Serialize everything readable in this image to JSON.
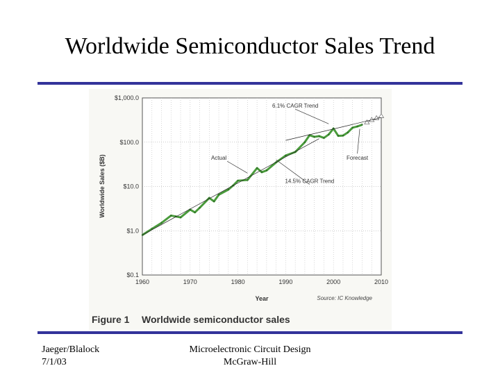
{
  "slide": {
    "title": "Worldwide Semiconductor Sales Trend",
    "footer_left": [
      "Jaeger/Blalock",
      "7/1/03"
    ],
    "footer_center": [
      "Microelectronic Circuit Design",
      "McGraw-Hill"
    ],
    "rule_color": "#33339a"
  },
  "chart_data": {
    "type": "line",
    "caption_number": "Figure 1",
    "caption_text": "Worldwide semiconductor sales",
    "xlabel": "Year",
    "ylabel": "Worldwide Sales ($B)",
    "yscale": "log",
    "xlim": [
      1960,
      2010
    ],
    "ylim": [
      0.1,
      1000
    ],
    "x_ticks": [
      1960,
      1970,
      1980,
      1990,
      2000,
      2010
    ],
    "y_ticks": [
      {
        "value": 1000,
        "label": "$1,000.0"
      },
      {
        "value": 100,
        "label": "$100.0"
      },
      {
        "value": 10,
        "label": "$10.0"
      },
      {
        "value": 1,
        "label": "$1.0"
      },
      {
        "value": 0.1,
        "label": "$0.1"
      }
    ],
    "grid": true,
    "source": "Source: IC Knowledge",
    "series": [
      {
        "name": "Actual",
        "color": "#4a9b3c",
        "x": [
          1960,
          1962,
          1964,
          1966,
          1967,
          1968,
          1970,
          1971,
          1972,
          1974,
          1975,
          1976,
          1978,
          1979,
          1980,
          1982,
          1984,
          1985,
          1986,
          1988,
          1990,
          1992,
          1994,
          1995,
          1996,
          1997,
          1998,
          1999,
          2000,
          2001,
          2002,
          2003,
          2004,
          2005,
          2006
        ],
        "values": [
          0.8,
          1.1,
          1.5,
          2.2,
          2.1,
          2.0,
          3.0,
          2.6,
          3.3,
          5.5,
          4.6,
          6.5,
          8.5,
          10.5,
          13.5,
          14.0,
          26.0,
          21.0,
          23.0,
          35.0,
          50.0,
          60.0,
          100.0,
          144.0,
          132.0,
          137.0,
          125.0,
          149.0,
          204.0,
          139.0,
          141.0,
          166.0,
          213.0,
          227.0,
          248.0
        ]
      },
      {
        "name": "Forecast",
        "color": "#777777",
        "x": [
          2007,
          2008,
          2009,
          2010
        ],
        "values": [
          280.0,
          320.0,
          350.0,
          390.0
        ]
      },
      {
        "name": "14.5% CAGR Trend",
        "color": "#222222",
        "x": [
          1960,
          1997
        ],
        "values": [
          0.8,
          120.0
        ]
      },
      {
        "name": "6.1% CAGR Trend",
        "color": "#222222",
        "x": [
          1990,
          2010
        ],
        "values": [
          110.0,
          360.0
        ]
      }
    ],
    "annotations": [
      {
        "text": "6.1% CAGR Trend",
        "x": 1992,
        "y": 600
      },
      {
        "text": "Actual",
        "x": 1976,
        "y": 40
      },
      {
        "text": "Forecast",
        "x": 2005,
        "y": 40
      },
      {
        "text": "14.5% CAGR Trend",
        "x": 1995,
        "y": 12
      }
    ]
  }
}
